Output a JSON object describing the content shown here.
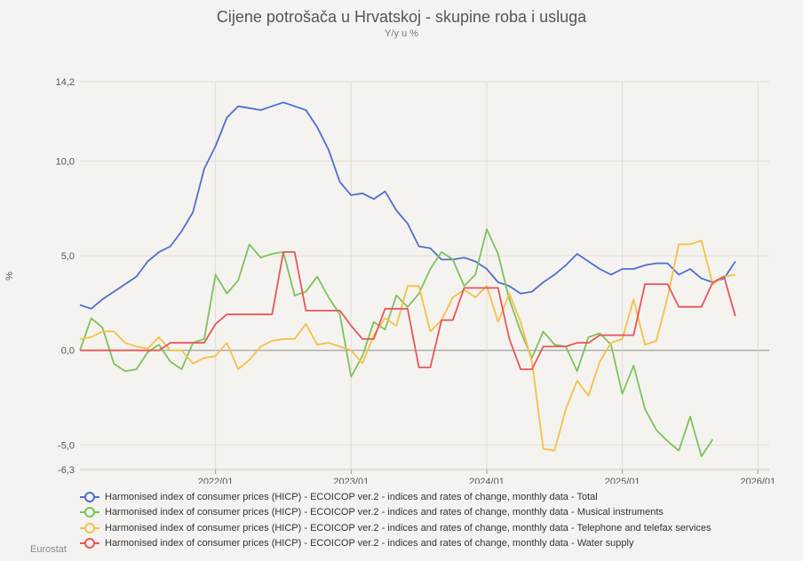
{
  "chart_data": {
    "type": "line",
    "title": "Cijene potrošača u Hrvatskoj - skupine roba i usluga",
    "subtitle": "Y/y u %",
    "ylabel": "%",
    "xlabel": "",
    "source": "Eurostat",
    "ylim": [
      -6.3,
      14.2
    ],
    "yticks": [
      {
        "value": 14.2,
        "label": "14,2"
      },
      {
        "value": 10.0,
        "label": "10,0"
      },
      {
        "value": 5.0,
        "label": "5,0"
      },
      {
        "value": 0.0,
        "label": "0,0"
      },
      {
        "value": -5.0,
        "label": "-5,0"
      },
      {
        "value": -6.3,
        "label": "-6,3"
      }
    ],
    "xlim": [
      "2021-01",
      "2026-02"
    ],
    "xticks": [
      {
        "date": "2022-01",
        "label": "2022/01"
      },
      {
        "date": "2023-01",
        "label": "2023/01"
      },
      {
        "date": "2024-01",
        "label": "2024/01"
      },
      {
        "date": "2025-01",
        "label": "2025/01"
      },
      {
        "date": "2026-01",
        "label": "2026/01"
      }
    ],
    "grid": true,
    "legend_position": "bottom",
    "series": [
      {
        "name": "Harmonised index of consumer prices (HICP) - ECOICOP ver.2 - indices and rates of change, monthly data - Total",
        "color": "#4f6fd0",
        "start": "2021-01",
        "values": [
          2.4,
          2.2,
          2.7,
          3.1,
          3.5,
          3.9,
          4.7,
          5.2,
          5.5,
          6.3,
          7.3,
          9.6,
          10.8,
          12.3,
          12.9,
          12.8,
          12.7,
          12.9,
          13.1,
          12.9,
          12.7,
          11.8,
          10.6,
          8.9,
          8.2,
          8.3,
          8.0,
          8.4,
          7.4,
          6.7,
          5.5,
          5.4,
          4.8,
          4.8,
          4.9,
          4.7,
          4.3,
          3.6,
          3.4,
          3.0,
          3.1,
          3.6,
          4.0,
          4.5,
          5.1,
          4.7,
          4.3,
          4.0,
          4.3,
          4.3,
          4.5,
          4.6,
          4.6,
          4.0,
          4.3,
          3.8,
          3.6,
          3.8,
          4.7
        ]
      },
      {
        "name": "Harmonised index of consumer prices (HICP) - ECOICOP ver.2 - indices and rates of change, monthly data - Musical instruments",
        "color": "#7cc35b",
        "start": "2021-01",
        "values": [
          0.0,
          1.7,
          1.2,
          -0.7,
          -1.1,
          -1.0,
          -0.1,
          0.3,
          -0.6,
          -1.0,
          0.4,
          0.6,
          4.0,
          3.0,
          3.7,
          5.6,
          4.9,
          5.1,
          5.2,
          2.9,
          3.1,
          3.9,
          2.8,
          1.9,
          -1.4,
          -0.3,
          1.5,
          1.1,
          2.9,
          2.3,
          3.0,
          4.3,
          5.2,
          4.8,
          3.4,
          4.0,
          6.4,
          5.1,
          2.7,
          1.0,
          -0.4,
          1.0,
          0.3,
          0.2,
          -1.1,
          0.7,
          0.9,
          0.3,
          -2.3,
          -0.8,
          -3.1,
          -4.2,
          -4.8,
          -5.3,
          -3.5,
          -5.6,
          -4.7
        ]
      },
      {
        "name": "Harmonised index of consumer prices (HICP) - ECOICOP ver.2 - indices and rates of change, monthly data - Telephone and telefax services",
        "color": "#f5c048",
        "start": "2021-01",
        "values": [
          0.6,
          0.7,
          1.0,
          1.0,
          0.4,
          0.2,
          0.1,
          0.7,
          0.0,
          0.0,
          -0.7,
          -0.4,
          -0.3,
          0.4,
          -1.0,
          -0.5,
          0.2,
          0.5,
          0.6,
          0.6,
          1.4,
          0.3,
          0.4,
          0.2,
          0.0,
          -0.7,
          0.8,
          1.7,
          1.3,
          3.4,
          3.4,
          1.0,
          1.6,
          2.8,
          3.2,
          2.8,
          3.4,
          1.5,
          3.0,
          1.5,
          -0.6,
          -5.2,
          -5.3,
          -3.1,
          -1.6,
          -2.4,
          -0.6,
          0.4,
          0.6,
          2.7,
          0.3,
          0.5,
          2.8,
          5.6,
          5.6,
          5.8,
          3.5,
          3.9,
          4.0
        ]
      },
      {
        "name": "Harmonised index of consumer prices (HICP) - ECOICOP ver.2 - indices and rates of change, monthly data - Water supply",
        "color": "#e8555a",
        "start": "2021-01",
        "values": [
          0.0,
          0.0,
          0.0,
          0.0,
          0.0,
          0.0,
          0.0,
          0.0,
          0.4,
          0.4,
          0.4,
          0.4,
          1.4,
          1.9,
          1.9,
          1.9,
          1.9,
          1.9,
          5.2,
          5.2,
          2.1,
          2.1,
          2.1,
          2.1,
          1.3,
          0.6,
          0.6,
          2.2,
          2.2,
          2.2,
          -0.9,
          -0.9,
          1.6,
          1.6,
          3.3,
          3.3,
          3.3,
          3.3,
          0.6,
          -1.0,
          -1.0,
          0.2,
          0.2,
          0.2,
          0.4,
          0.4,
          0.8,
          0.8,
          0.8,
          0.8,
          3.5,
          3.5,
          3.5,
          2.3,
          2.3,
          2.3,
          3.6,
          3.9,
          1.8
        ]
      }
    ]
  }
}
